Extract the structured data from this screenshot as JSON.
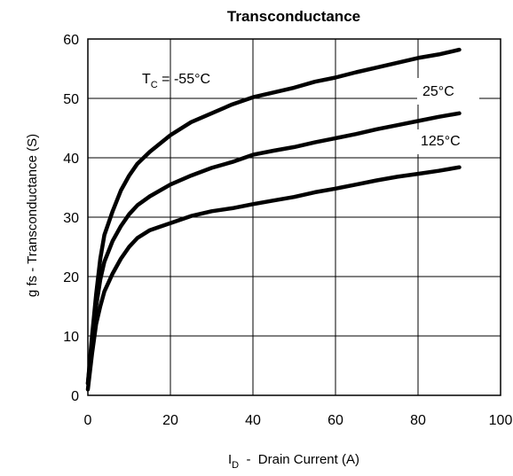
{
  "chart_data": {
    "type": "line",
    "title": "Transconductance",
    "xlabel": {
      "main": "I",
      "sub": "D",
      "rest": "  -  Drain Current (A)"
    },
    "ylabel": "g fs - Transconductance (S)",
    "xlim": [
      0,
      100
    ],
    "ylim": [
      0,
      60
    ],
    "xticks": [
      0,
      20,
      40,
      60,
      80,
      100
    ],
    "yticks": [
      0,
      10,
      20,
      30,
      40,
      50,
      60
    ],
    "grid": true,
    "annotations": [
      {
        "main": "T",
        "sub": "C",
        "rest": " = -55°C"
      },
      {
        "text": "25°C"
      },
      {
        "text": "125°C"
      }
    ],
    "series": [
      {
        "x": [
          0,
          1,
          2,
          3,
          4,
          6,
          8,
          10,
          12,
          15,
          20,
          25,
          30,
          35,
          40,
          45,
          50,
          55,
          60,
          65,
          70,
          75,
          80,
          85,
          90
        ],
        "values": [
          2,
          10,
          17,
          23,
          27,
          31,
          34.5,
          37,
          39,
          41,
          43.8,
          46,
          47.5,
          49,
          50.2,
          51,
          51.8,
          52.8,
          53.5,
          54.4,
          55.2,
          56,
          56.8,
          57.4,
          58.2
        ]
      },
      {
        "x": [
          0,
          1,
          2,
          3,
          4,
          6,
          8,
          10,
          12,
          15,
          20,
          25,
          30,
          35,
          40,
          45,
          50,
          55,
          60,
          65,
          70,
          75,
          80,
          85,
          90
        ],
        "values": [
          2,
          9,
          15,
          19.5,
          22.5,
          26,
          28.5,
          30.5,
          32,
          33.5,
          35.5,
          37,
          38.3,
          39.3,
          40.5,
          41.2,
          41.8,
          42.6,
          43.3,
          44,
          44.8,
          45.5,
          46.2,
          46.9,
          47.5
        ]
      },
      {
        "x": [
          0,
          1,
          2,
          3,
          4,
          6,
          8,
          10,
          12,
          15,
          20,
          25,
          30,
          35,
          40,
          45,
          50,
          55,
          60,
          65,
          70,
          75,
          80,
          85,
          90
        ],
        "values": [
          1,
          7,
          12,
          15,
          17.5,
          20.5,
          23,
          25,
          26.5,
          27.8,
          29,
          30.2,
          31,
          31.5,
          32.2,
          32.8,
          33.4,
          34.2,
          34.8,
          35.5,
          36.2,
          36.8,
          37.3,
          37.8,
          38.4
        ]
      }
    ]
  }
}
